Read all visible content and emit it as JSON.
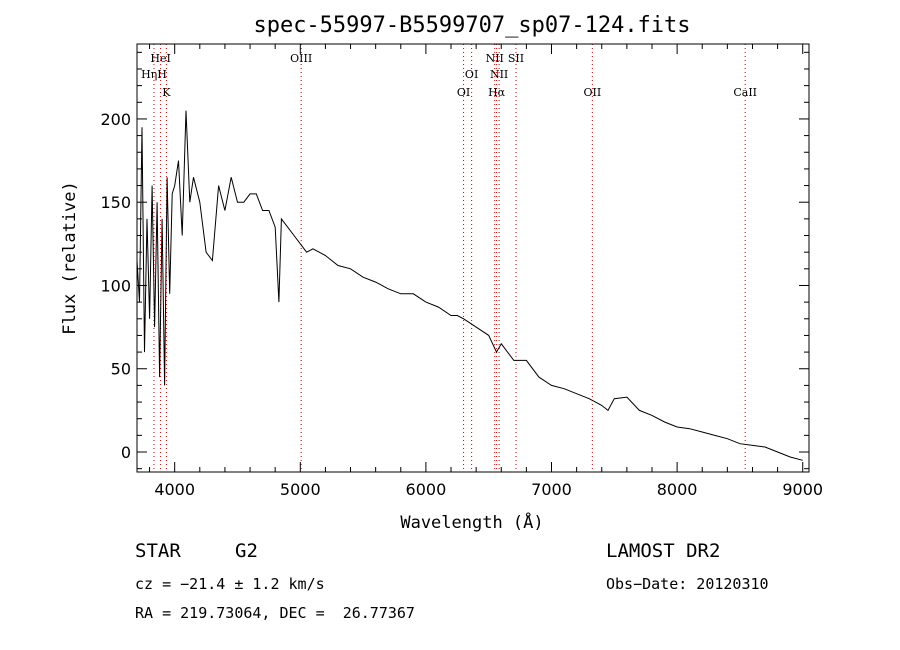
{
  "chart_data": {
    "type": "line",
    "title": "spec-55997-B5599707_sp07-124.fits",
    "xlabel": "Wavelength (Å)",
    "ylabel": "Flux (relative)",
    "xlim": [
      3700,
      9050
    ],
    "ylim": [
      -12,
      245
    ],
    "xticks": [
      4000,
      5000,
      6000,
      7000,
      8000,
      9000
    ],
    "yticks": [
      0,
      50,
      100,
      150,
      200
    ],
    "grid": false,
    "series": [
      {
        "x": [
          3700,
          3720,
          3740,
          3760,
          3780,
          3800,
          3820,
          3840,
          3860,
          3880,
          3900,
          3920,
          3940,
          3960,
          3980,
          4000,
          4030,
          4060,
          4090,
          4120,
          4150,
          4200,
          4250,
          4300,
          4350,
          4400,
          4450,
          4500,
          4550,
          4600,
          4650,
          4700,
          4750,
          4800,
          4830,
          4850,
          4900,
          4950,
          5000,
          5050,
          5100,
          5200,
          5300,
          5400,
          5500,
          5600,
          5700,
          5800,
          5900,
          6000,
          6100,
          6200,
          6250,
          6300,
          6400,
          6500,
          6562,
          6600,
          6700,
          6800,
          6900,
          7000,
          7100,
          7200,
          7300,
          7400,
          7450,
          7500,
          7600,
          7700,
          7800,
          7900,
          8000,
          8100,
          8200,
          8300,
          8400,
          8500,
          8600,
          8700,
          8800,
          8900,
          9000
        ],
        "values": [
          115,
          90,
          195,
          60,
          140,
          80,
          160,
          75,
          150,
          45,
          140,
          40,
          165,
          95,
          155,
          160,
          175,
          130,
          205,
          150,
          165,
          150,
          120,
          115,
          160,
          145,
          165,
          150,
          150,
          155,
          155,
          145,
          145,
          135,
          90,
          140,
          135,
          130,
          125,
          120,
          122,
          118,
          112,
          110,
          105,
          102,
          98,
          95,
          95,
          90,
          87,
          82,
          82,
          80,
          75,
          70,
          60,
          65,
          55,
          55,
          45,
          40,
          38,
          35,
          32,
          28,
          25,
          32,
          33,
          25,
          22,
          18,
          15,
          14,
          12,
          10,
          8,
          5,
          4,
          3,
          0,
          -3,
          -5
        ]
      }
    ],
    "emission_lines": [
      {
        "label": "HeI",
        "x": 3888
      },
      {
        "label": "HηH",
        "x": 3835
      },
      {
        "label": "K",
        "x": 3934
      },
      {
        "label": "OIII",
        "x": 5007
      },
      {
        "label": "OI",
        "x": 6300
      },
      {
        "label": "OI",
        "x": 6364
      },
      {
        "label": "NII",
        "x": 6548
      },
      {
        "label": "NII",
        "x": 6583
      },
      {
        "label": "Hα",
        "x": 6563
      },
      {
        "label": "SII",
        "x": 6717
      },
      {
        "label": "OII",
        "x": 7325
      },
      {
        "label": "CaII",
        "x": 8542
      }
    ]
  },
  "info": {
    "object_type": "STAR",
    "subclass": "G2",
    "survey": "LAMOST DR2",
    "cz": "cz = −21.4 ± 1.2 km/s",
    "obs_date": "Obs−Date: 20120310",
    "coords": "RA = 219.73064, DEC =  26.77367"
  }
}
